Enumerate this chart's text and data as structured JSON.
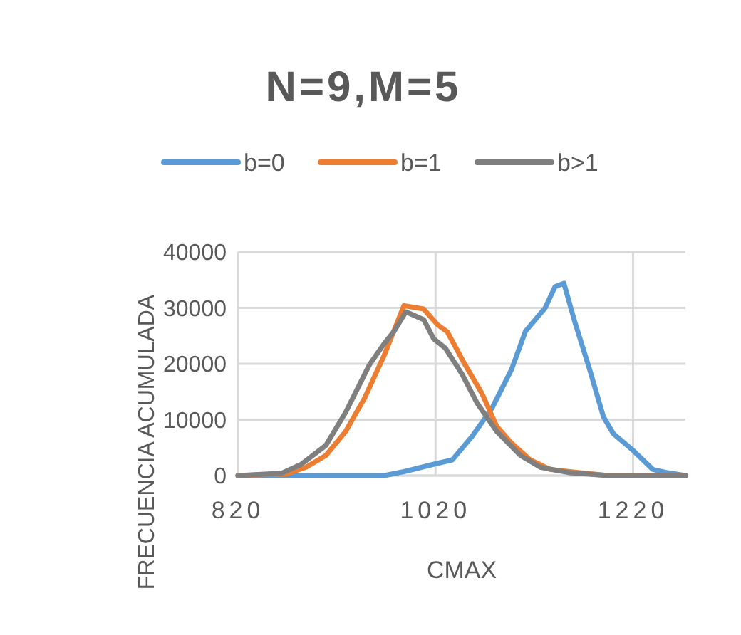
{
  "chart_data": {
    "type": "line",
    "title": "N=9,M=5",
    "xlabel": "CMAX",
    "ylabel": "FRECUENCIA ACUMULADA",
    "xlim": [
      820,
      1273
    ],
    "xticks": [
      820,
      1020,
      1220
    ],
    "ylim": [
      0,
      40000
    ],
    "yticks": [
      0,
      10000,
      20000,
      30000,
      40000
    ],
    "grid": true,
    "legend": "top",
    "marker": "none",
    "line_style": "solid",
    "series": [
      {
        "name": "b=0",
        "color": "#5b9bd5",
        "x": [
          820,
          968,
          988,
          1020,
          1037,
          1057,
          1077,
          1097,
          1111,
          1131,
          1141,
          1150,
          1161,
          1176,
          1190,
          1200,
          1220,
          1240,
          1255,
          1273
        ],
        "values": [
          0,
          0,
          700,
          2100,
          2800,
          7000,
          12000,
          19000,
          25800,
          30000,
          33800,
          34400,
          27500,
          19000,
          10500,
          7500,
          4500,
          1100,
          500,
          0
        ]
      },
      {
        "name": "b=1",
        "color": "#ed7d31",
        "x": [
          820,
          869,
          889,
          909,
          929,
          948,
          968,
          988,
          1008,
          1022,
          1032,
          1050,
          1067,
          1082,
          1097,
          1116,
          1136,
          1166,
          1195,
          1273
        ],
        "values": [
          0,
          300,
          1500,
          3600,
          7900,
          13800,
          21500,
          30400,
          29800,
          27000,
          25700,
          19800,
          14700,
          8800,
          5800,
          2800,
          1100,
          500,
          0,
          0
        ]
      },
      {
        "name": "b>1",
        "color": "#7f7f7f",
        "x": [
          820,
          864,
          884,
          909,
          929,
          953,
          968,
          978,
          990,
          1008,
          1018,
          1030,
          1047,
          1062,
          1082,
          1106,
          1126,
          1156,
          1195,
          1273
        ],
        "values": [
          0,
          400,
          2000,
          5400,
          11300,
          19800,
          23600,
          25800,
          29300,
          27900,
          24500,
          22800,
          18100,
          13000,
          7900,
          3600,
          1500,
          500,
          0,
          0
        ]
      }
    ]
  }
}
